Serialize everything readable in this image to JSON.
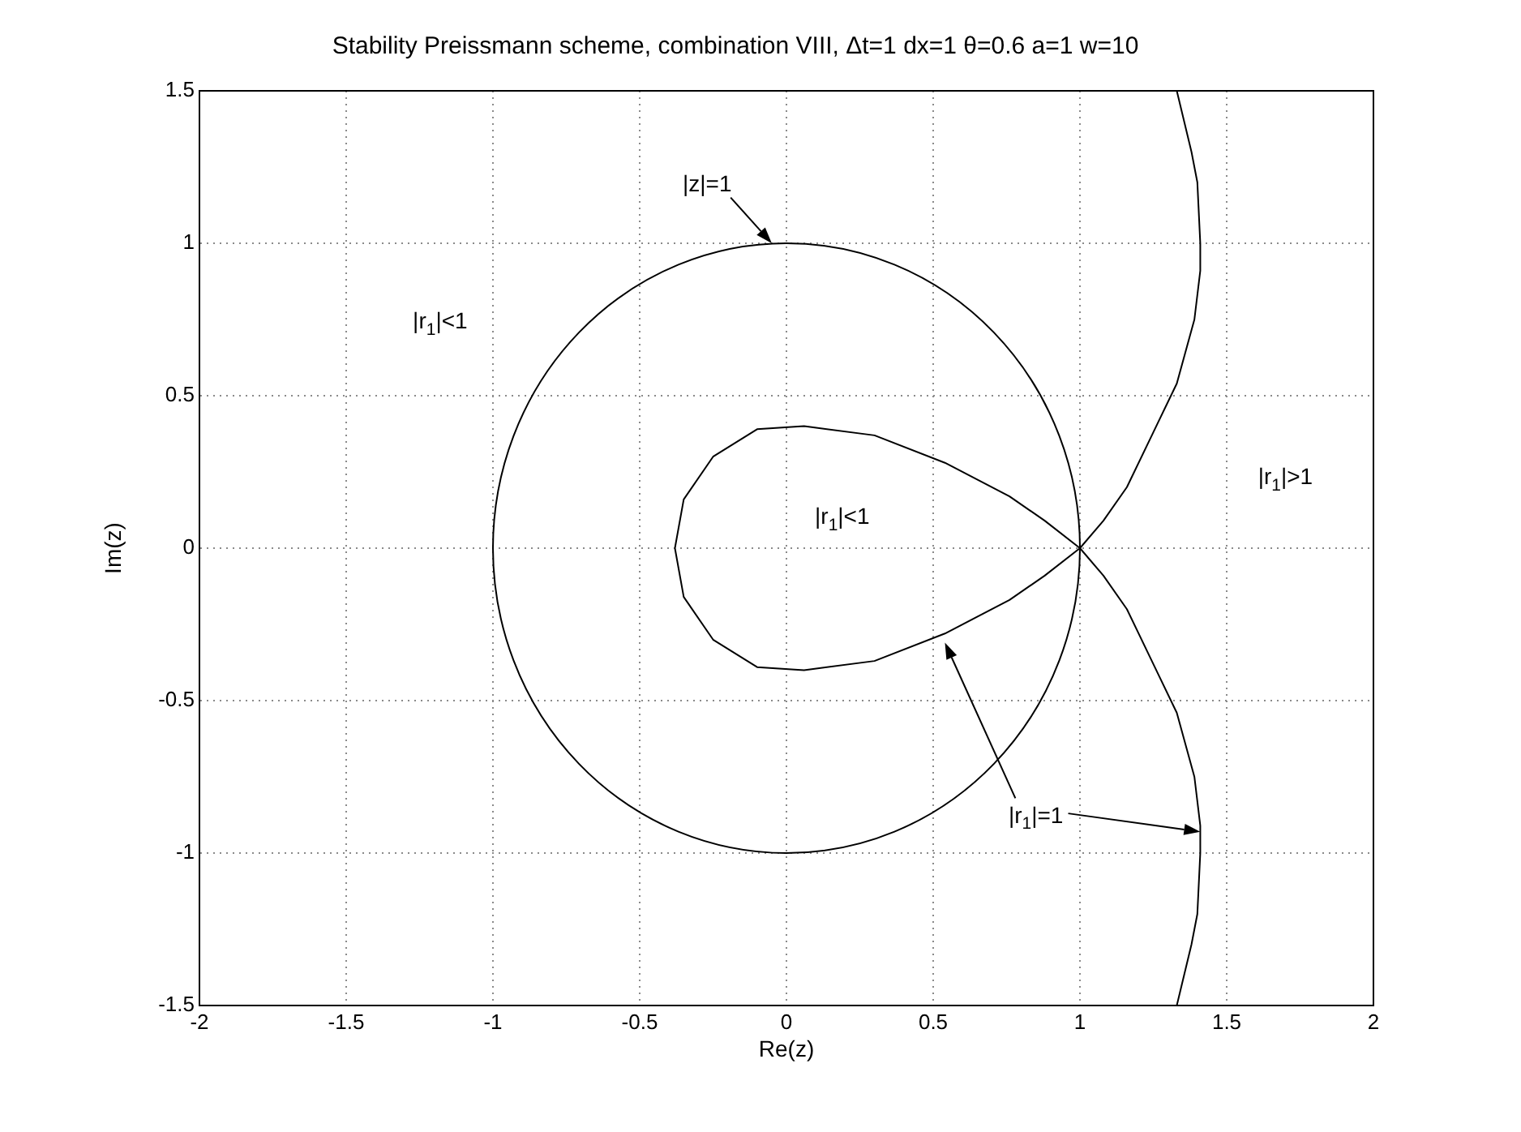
{
  "chart_data": {
    "type": "line",
    "title": "Stability Preissmann scheme, combination VIII, Δt=1 dx=1 θ=0.6 a=1 w=10",
    "xlabel": "Re(z)",
    "ylabel": "Im(z)",
    "xlim": [
      -2,
      2
    ],
    "ylim": [
      -1.5,
      1.5
    ],
    "xticks": [
      -2,
      -1.5,
      -1,
      -0.5,
      0,
      0.5,
      1,
      1.5,
      2
    ],
    "yticks": [
      -1.5,
      -1,
      -0.5,
      0,
      0.5,
      1,
      1.5
    ],
    "grid": true,
    "legend": false,
    "marker": "none",
    "line_style": "solid",
    "series": [
      {
        "color": "#000000",
        "x": [
          1.33,
          1.38,
          1.4,
          1.41,
          1.41,
          1.39,
          1.33,
          1.25,
          1.16,
          1.08,
          1,
          0.88,
          0.76,
          0.54,
          0.3,
          0.06,
          -0.1,
          -0.25,
          -0.35,
          -0.38,
          -0.35,
          -0.25,
          -0.1,
          0.06,
          0.3,
          0.54,
          0.76,
          0.88,
          1,
          1.08,
          1.16,
          1.25,
          1.33,
          1.39,
          1.41,
          1.41,
          1.4,
          1.38,
          1.33
        ],
        "values": [
          1.5,
          1.3,
          1.2,
          1.0,
          0.91,
          0.75,
          0.54,
          0.38,
          0.2,
          0.09,
          0,
          -0.09,
          -0.17,
          -0.28,
          -0.37,
          -0.4,
          -0.39,
          -0.3,
          -0.16,
          0,
          0.16,
          0.3,
          0.39,
          0.4,
          0.37,
          0.28,
          0.17,
          0.09,
          0,
          -0.09,
          -0.2,
          -0.38,
          -0.54,
          -0.75,
          -0.91,
          -1.0,
          -1.2,
          -1.3,
          -1.5
        ]
      }
    ],
    "annotations": [
      "|z|=1",
      "|r$_{1}$|<1",
      "|r$_{1}$|<1",
      "|r$_{1}$|>1",
      "|r$_{1}$|=1"
    ]
  }
}
